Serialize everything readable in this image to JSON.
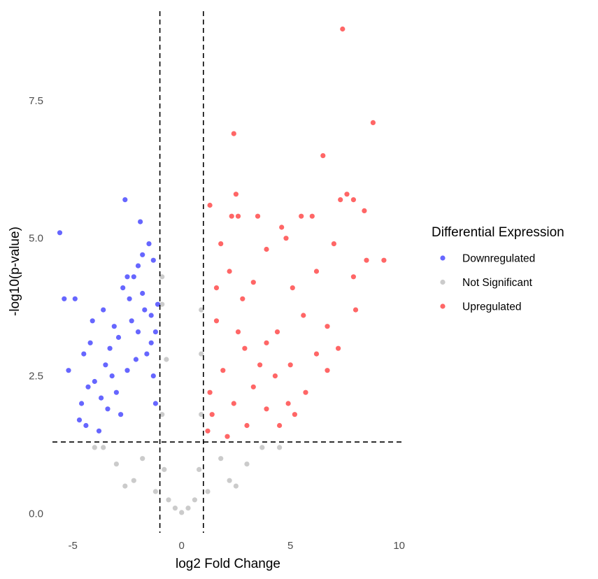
{
  "chart_data": {
    "type": "scatter",
    "xlabel": "log2 Fold Change",
    "ylabel": "-log10(p-value)",
    "xlim": [
      -6.1,
      10.3
    ],
    "ylim": [
      -0.35,
      9.2
    ],
    "x_ticks": [
      {
        "value": -5,
        "label": "-5"
      },
      {
        "value": 0,
        "label": "0"
      },
      {
        "value": 5,
        "label": "5"
      },
      {
        "value": 10,
        "label": "10"
      }
    ],
    "y_ticks": [
      {
        "value": 0.0,
        "label": "0.0"
      },
      {
        "value": 2.5,
        "label": "2.5"
      },
      {
        "value": 5.0,
        "label": "5.0"
      },
      {
        "value": 7.5,
        "label": "7.5"
      }
    ],
    "grid": false,
    "thresholds": {
      "fold_change": [
        -1,
        1
      ],
      "neg_log10_p": 1.3
    },
    "legend": {
      "title": "Differential Expression",
      "placement": "right",
      "items": [
        {
          "label": "Downregulated",
          "color": "#0000ff"
        },
        {
          "label": "Not Significant",
          "color": "#bebebe"
        },
        {
          "label": "Upregulated",
          "color": "#ff0000"
        }
      ]
    },
    "series": [
      {
        "name": "Downregulated",
        "color": "#0000ff",
        "points": [
          [
            -5.6,
            5.1
          ],
          [
            -5.4,
            3.9
          ],
          [
            -5.2,
            2.6
          ],
          [
            -4.9,
            3.9
          ],
          [
            -4.7,
            1.7
          ],
          [
            -4.6,
            2.0
          ],
          [
            -4.5,
            2.9
          ],
          [
            -4.4,
            1.6
          ],
          [
            -4.3,
            2.3
          ],
          [
            -4.2,
            3.1
          ],
          [
            -4.1,
            3.5
          ],
          [
            -4.0,
            2.4
          ],
          [
            -3.8,
            1.5
          ],
          [
            -3.7,
            2.1
          ],
          [
            -3.6,
            3.7
          ],
          [
            -3.5,
            2.7
          ],
          [
            -3.4,
            1.9
          ],
          [
            -3.3,
            3.0
          ],
          [
            -3.2,
            2.5
          ],
          [
            -3.1,
            3.4
          ],
          [
            -3.0,
            2.2
          ],
          [
            -2.9,
            3.2
          ],
          [
            -2.8,
            1.8
          ],
          [
            -2.7,
            4.1
          ],
          [
            -2.6,
            5.7
          ],
          [
            -2.5,
            2.6
          ],
          [
            -2.4,
            3.9
          ],
          [
            -2.3,
            3.5
          ],
          [
            -2.2,
            4.3
          ],
          [
            -2.1,
            2.8
          ],
          [
            -2.0,
            3.3
          ],
          [
            -1.9,
            5.3
          ],
          [
            -1.8,
            4.0
          ],
          [
            -1.7,
            3.7
          ],
          [
            -1.6,
            2.9
          ],
          [
            -1.5,
            4.9
          ],
          [
            -1.4,
            3.1
          ],
          [
            -1.3,
            4.6
          ],
          [
            -1.2,
            2.0
          ],
          [
            -1.1,
            3.8
          ],
          [
            -2.0,
            4.5
          ],
          [
            -1.8,
            4.7
          ],
          [
            -2.5,
            4.3
          ],
          [
            -1.4,
            3.6
          ],
          [
            -1.3,
            2.5
          ],
          [
            -1.2,
            3.3
          ]
        ]
      },
      {
        "name": "Upregulated",
        "color": "#ff0000",
        "points": [
          [
            7.4,
            8.8
          ],
          [
            8.8,
            7.1
          ],
          [
            2.4,
            6.9
          ],
          [
            6.5,
            6.5
          ],
          [
            2.5,
            5.8
          ],
          [
            7.3,
            5.7
          ],
          [
            7.6,
            5.8
          ],
          [
            7.9,
            5.7
          ],
          [
            8.4,
            5.5
          ],
          [
            1.3,
            5.6
          ],
          [
            2.3,
            5.4
          ],
          [
            2.6,
            5.4
          ],
          [
            3.5,
            5.4
          ],
          [
            6.0,
            5.4
          ],
          [
            5.5,
            5.4
          ],
          [
            4.6,
            5.2
          ],
          [
            1.8,
            4.9
          ],
          [
            4.8,
            5.0
          ],
          [
            7.0,
            4.9
          ],
          [
            9.3,
            4.6
          ],
          [
            8.5,
            4.6
          ],
          [
            3.9,
            4.8
          ],
          [
            2.2,
            4.4
          ],
          [
            1.6,
            4.1
          ],
          [
            6.2,
            4.4
          ],
          [
            5.1,
            4.1
          ],
          [
            3.3,
            4.2
          ],
          [
            2.8,
            3.9
          ],
          [
            7.9,
            4.3
          ],
          [
            8.0,
            3.7
          ],
          [
            6.7,
            3.4
          ],
          [
            5.6,
            3.6
          ],
          [
            4.4,
            3.3
          ],
          [
            3.9,
            3.1
          ],
          [
            2.9,
            3.0
          ],
          [
            1.6,
            3.5
          ],
          [
            7.2,
            3.0
          ],
          [
            6.2,
            2.9
          ],
          [
            5.0,
            2.7
          ],
          [
            4.3,
            2.5
          ],
          [
            3.3,
            2.3
          ],
          [
            2.4,
            2.0
          ],
          [
            1.4,
            1.8
          ],
          [
            6.7,
            2.6
          ],
          [
            5.7,
            2.2
          ],
          [
            4.9,
            2.0
          ],
          [
            3.9,
            1.9
          ],
          [
            3.0,
            1.6
          ],
          [
            2.1,
            1.4
          ],
          [
            1.3,
            2.2
          ],
          [
            1.2,
            1.5
          ],
          [
            4.5,
            1.6
          ],
          [
            5.2,
            1.8
          ],
          [
            3.6,
            2.7
          ],
          [
            2.6,
            3.3
          ],
          [
            1.9,
            2.6
          ]
        ]
      },
      {
        "name": "Not Significant",
        "color": "#bebebe",
        "points": [
          [
            0.0,
            0.02
          ],
          [
            -0.3,
            0.1
          ],
          [
            0.3,
            0.1
          ],
          [
            -0.6,
            0.25
          ],
          [
            0.6,
            0.25
          ],
          [
            -1.2,
            0.4
          ],
          [
            1.2,
            0.4
          ],
          [
            -2.2,
            0.6
          ],
          [
            2.2,
            0.6
          ],
          [
            -3.0,
            0.9
          ],
          [
            3.0,
            0.9
          ],
          [
            -3.6,
            1.2
          ],
          [
            3.7,
            1.2
          ],
          [
            -0.8,
            0.8
          ],
          [
            0.8,
            0.8
          ],
          [
            -0.9,
            1.8
          ],
          [
            0.9,
            1.8
          ],
          [
            -0.7,
            2.8
          ],
          [
            0.9,
            2.9
          ],
          [
            -0.9,
            3.8
          ],
          [
            0.9,
            3.7
          ],
          [
            -0.9,
            4.3
          ],
          [
            -1.8,
            1.0
          ],
          [
            1.8,
            1.0
          ],
          [
            -2.6,
            0.5
          ],
          [
            2.5,
            0.5
          ],
          [
            4.5,
            1.2
          ],
          [
            -4.0,
            1.2
          ]
        ]
      }
    ]
  }
}
